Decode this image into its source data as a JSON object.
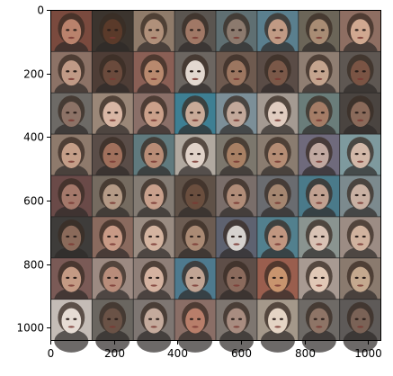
{
  "chart_data": {
    "type": "heatmap",
    "title": "",
    "xlabel": "",
    "ylabel": "",
    "xlim": [
      0,
      1042
    ],
    "ylim": [
      1042,
      0
    ],
    "x_ticks": [
      0,
      200,
      400,
      600,
      800,
      1000
    ],
    "y_ticks": [
      0,
      200,
      400,
      600,
      800,
      1000
    ],
    "grid": {
      "rows": 8,
      "cols": 8,
      "cell_size": 130,
      "gap": 2
    },
    "tiles": [
      [
        "#7a4a3e",
        "#3b342e",
        "#8f7b6a",
        "#5a5550",
        "#5f6f72",
        "#5a7f8e",
        "#6b6558",
        "#8e6e62"
      ],
      [
        "#8c7266",
        "#4e3d36",
        "#8a5f55",
        "#6c6661",
        "#6e5a4f",
        "#5a4c46",
        "#8f7e72",
        "#5e5752"
      ],
      [
        "#6d6a66",
        "#9a8778",
        "#8a6f68",
        "#3e7f93",
        "#7c8f98",
        "#a49a92",
        "#6a7d7a",
        "#4a4440"
      ],
      [
        "#8e7a6c",
        "#5a4d48",
        "#607a7e",
        "#b1a9a0",
        "#7c776d",
        "#8a7c70",
        "#6f6a7c",
        "#7e9a9e"
      ],
      [
        "#6a4a48",
        "#756b60",
        "#847c74",
        "#5f5147",
        "#7a6e6a",
        "#6a6c70",
        "#4a7a8a",
        "#7c8a8e"
      ],
      [
        "#3e3c3a",
        "#8a6a5e",
        "#9a8c82",
        "#6c5c52",
        "#5e6270",
        "#52808e",
        "#8a9490",
        "#9c8c84"
      ],
      [
        "#7a5a56",
        "#9c8a82",
        "#8f7f78",
        "#4e7a8e",
        "#5e4e48",
        "#9a5e4e",
        "#a89a92",
        "#8a7a6e"
      ],
      [
        "#c4bcb6",
        "#6a6660",
        "#7e7672",
        "#8a6e66",
        "#7e7670",
        "#a4988a",
        "#6e6a66",
        "#5e5a58"
      ]
    ],
    "face_tones": [
      [
        "#b9826c",
        "#5a3a2a",
        "#b0907a",
        "#a07866",
        "#8c7a6e",
        "#c09a84",
        "#a88c74",
        "#d0a890"
      ],
      [
        "#c09a86",
        "#6a4a3c",
        "#b8896e",
        "#e2d8d0",
        "#9c7660",
        "#7a5848",
        "#c4a48e",
        "#7a5444"
      ],
      [
        "#8c7266",
        "#d8b6a4",
        "#caa08a",
        "#c8aa98",
        "#c2a89a",
        "#e0ccc0",
        "#a47c66",
        "#8a6a5a"
      ],
      [
        "#c49e88",
        "#a0705c",
        "#b88c76",
        "#e0d2c8",
        "#a88064",
        "#b48c74",
        "#c0a8a0",
        "#d2b8a8"
      ],
      [
        "#a4786a",
        "#b49a86",
        "#c8a08c",
        "#6a4e3e",
        "#b08c78",
        "#a48670",
        "#c0a090",
        "#c8b0a2"
      ],
      [
        "#8a6a5a",
        "#c89a86",
        "#d4b4a0",
        "#aa8a74",
        "#d6d2ce",
        "#c09680",
        "#d8c2b4",
        "#d0b29e"
      ],
      [
        "#c49a84",
        "#b88c7a",
        "#d4b2a0",
        "#c0a494",
        "#8a6a5c",
        "#c8946e",
        "#e0c8b6",
        "#c4a88e"
      ],
      [
        "#e6dcd4",
        "#6a5246",
        "#c4aa9c",
        "#b87e6a",
        "#a88c80",
        "#e4d4c4",
        "#8e7466",
        "#7a6256"
      ]
    ]
  }
}
